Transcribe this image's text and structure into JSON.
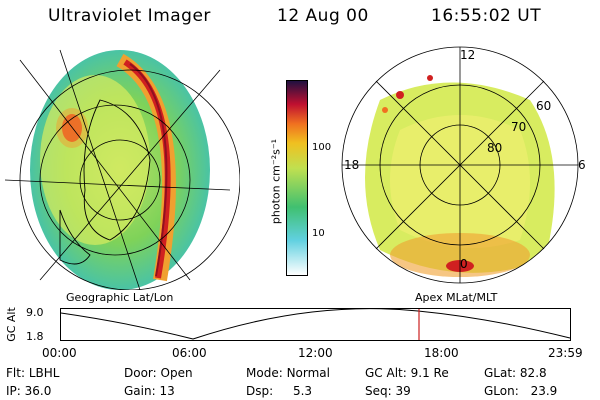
{
  "header": {
    "instrument": "Ultraviolet Imager",
    "date": "12 Aug 00",
    "time": "16:55:02 UT"
  },
  "left_panel": {
    "caption": "Geographic Lat/Lon"
  },
  "right_panel": {
    "caption": "Apex MLat/MLT",
    "mlt_labels": [
      "12",
      "18",
      "6",
      "0"
    ],
    "lat_labels": [
      "60",
      "70",
      "80"
    ]
  },
  "colorbar": {
    "unit_label": "photon cm⁻²s⁻¹",
    "ticks": [
      "100",
      "10"
    ]
  },
  "timeline": {
    "axis_label": "GC Alt",
    "y_ticks": [
      "9.0",
      "1.8"
    ],
    "x_ticks": [
      "00:00",
      "06:00",
      "12:00",
      "18:00",
      "23:59"
    ],
    "marker_color": "#cc2020"
  },
  "info": {
    "row1": [
      {
        "label": "Flt:",
        "value": "LBHL"
      },
      {
        "label": "Door:",
        "value": "Open"
      },
      {
        "label": "Mode:",
        "value": "Normal"
      },
      {
        "label": "GC Alt:",
        "value": "9.1 Re"
      },
      {
        "label": "GLat:",
        "value": "82.8"
      }
    ],
    "row2": [
      {
        "label": "IP:",
        "value": "36.0"
      },
      {
        "label": "Gain:",
        "value": "13"
      },
      {
        "label": "Dsp:",
        "value": "5.3"
      },
      {
        "label": "Seq:",
        "value": "39"
      },
      {
        "label": "GLon:",
        "value": "23.9"
      }
    ]
  }
}
